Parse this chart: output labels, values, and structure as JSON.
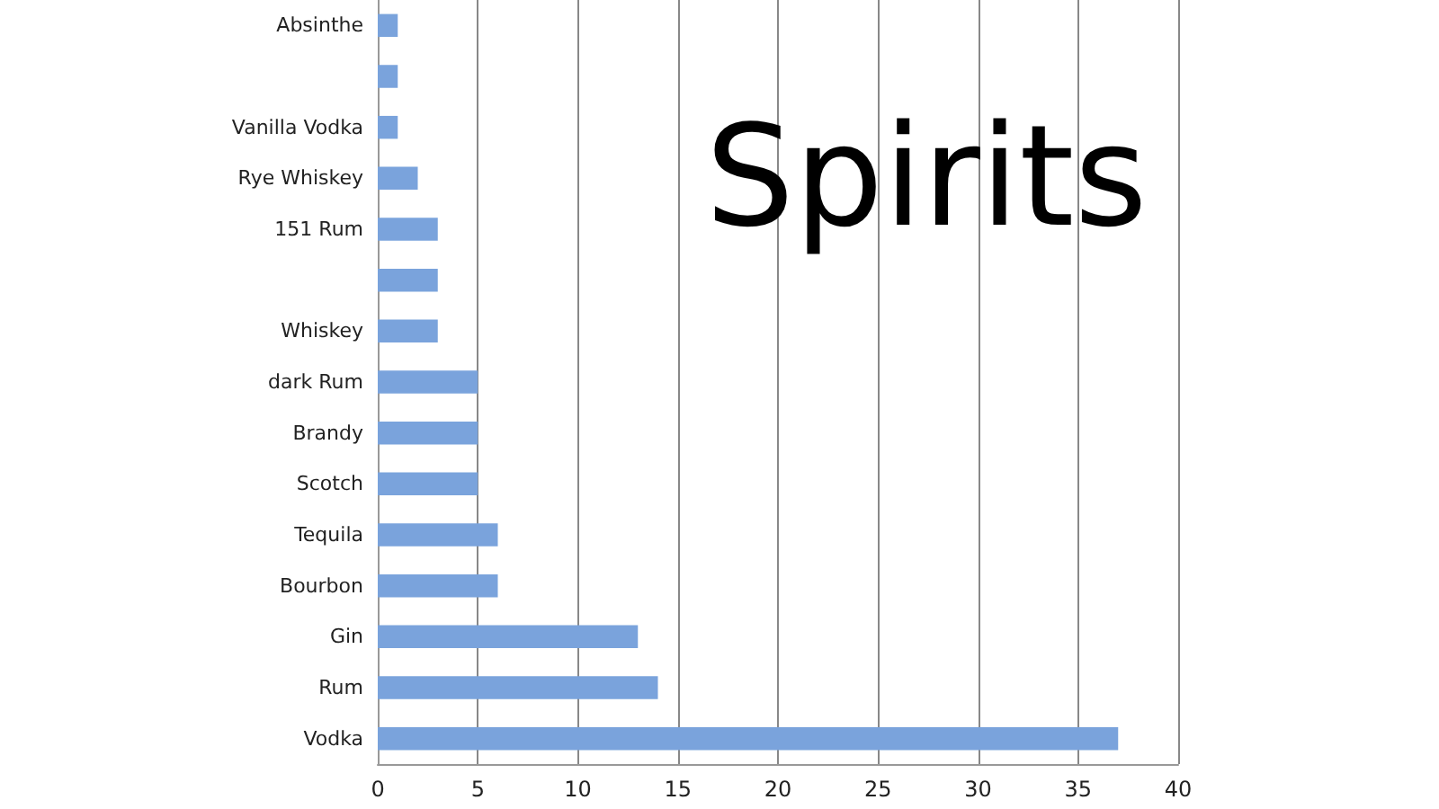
{
  "chart_data": {
    "type": "bar",
    "orientation": "horizontal",
    "title": "Spirits",
    "categories": [
      "Absinthe",
      null,
      "Vanilla Vodka",
      "Rye Whiskey",
      "151 Rum",
      null,
      "Whiskey",
      "dark Rum",
      "Brandy",
      "Scotch",
      "Tequila",
      "Bourbon",
      "Gin",
      "Rum",
      "Vodka"
    ],
    "values": [
      1,
      1,
      1,
      2,
      3,
      3,
      3,
      5,
      5,
      5,
      6,
      6,
      13,
      14,
      37
    ],
    "color": "#7aa3dc",
    "xlim": [
      0,
      40
    ],
    "xticks": [
      0,
      5,
      10,
      15,
      20,
      25,
      30,
      35,
      40
    ],
    "grid": "x"
  }
}
